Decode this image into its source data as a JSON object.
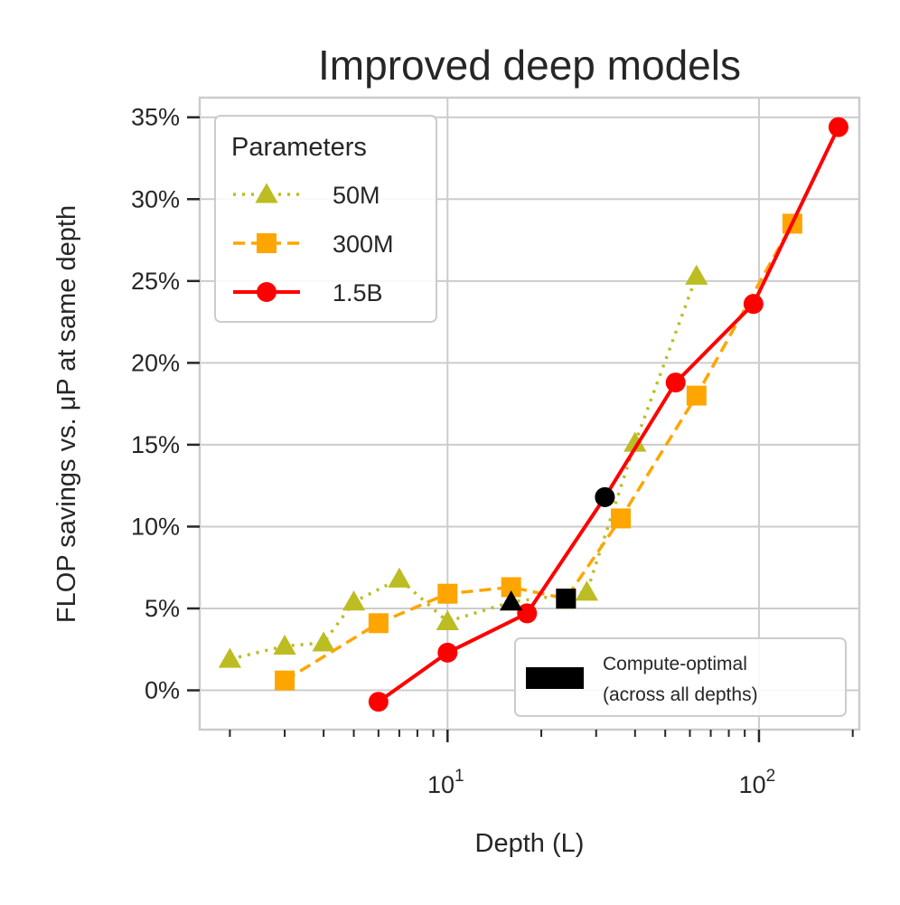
{
  "chart_data": {
    "type": "line",
    "title": "Improved deep models",
    "xlabel": "Depth (L)",
    "ylabel": "FLOP savings vs. μP at same depth",
    "xscale": "log",
    "xlim": [
      1.6,
      210
    ],
    "ylim": [
      -2.4,
      36.2
    ],
    "yticks": [
      0,
      5,
      10,
      15,
      20,
      25,
      30,
      35
    ],
    "ytick_labels": [
      "0%",
      "5%",
      "10%",
      "15%",
      "20%",
      "25%",
      "30%",
      "35%"
    ],
    "xtick_major": [
      {
        "value": 10,
        "base": "10",
        "exp": "1"
      },
      {
        "value": 100,
        "base": "10",
        "exp": "2"
      }
    ],
    "xtick_minor": [
      2,
      3,
      4,
      5,
      6,
      7,
      8,
      9,
      20,
      30,
      40,
      50,
      60,
      70,
      80,
      90,
      200
    ],
    "grid": true,
    "legend": {
      "title": "Parameters",
      "placement": "upper-left",
      "entries": [
        "50M",
        "300M",
        "1.5B"
      ]
    },
    "legend2": {
      "placement": "lower-right",
      "line1": "Compute-optimal",
      "line2": "(across all depths)"
    },
    "series": [
      {
        "name": "50M",
        "color": "#bcbd22",
        "linestyle": "dotted",
        "marker": "triangle",
        "x": [
          2,
          3,
          4,
          5,
          7,
          10,
          16,
          28,
          40,
          63
        ],
        "y": [
          1.9,
          2.7,
          2.9,
          5.4,
          6.8,
          4.2,
          5.4,
          6.0,
          15.1,
          25.3
        ]
      },
      {
        "name": "300M",
        "color": "#ffa500",
        "linestyle": "dashed",
        "marker": "square",
        "x": [
          3,
          6,
          10,
          16,
          24,
          36,
          63,
          128
        ],
        "y": [
          0.6,
          4.1,
          5.9,
          6.3,
          5.6,
          10.5,
          18.0,
          28.5
        ]
      },
      {
        "name": "1.5B",
        "color": "#ff0000",
        "linestyle": "solid",
        "marker": "circle",
        "x": [
          6,
          10,
          18,
          32,
          54,
          96,
          180
        ],
        "y": [
          -0.7,
          2.3,
          4.7,
          11.8,
          18.8,
          23.6,
          34.4
        ]
      }
    ],
    "compute_optimal_points": [
      {
        "series": "50M",
        "marker": "triangle",
        "x": 16,
        "y": 5.4
      },
      {
        "series": "300M",
        "marker": "square",
        "x": 24,
        "y": 5.6
      },
      {
        "series": "1.5B",
        "marker": "circle",
        "x": 32,
        "y": 11.8
      }
    ],
    "compute_optimal_color": "#000000"
  }
}
